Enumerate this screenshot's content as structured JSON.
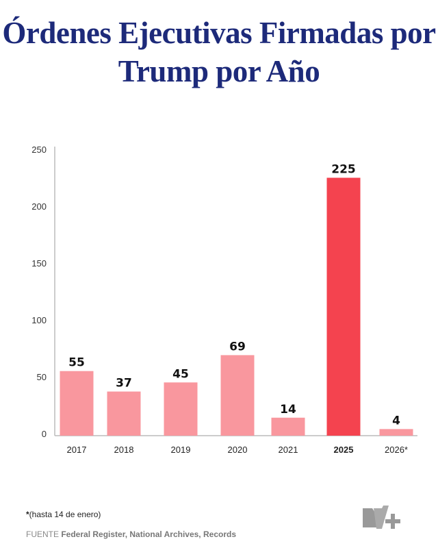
{
  "chart_data": {
    "type": "bar",
    "title": "Órdenes Ejecutivas Firmadas por Trump por Año",
    "categories": [
      "2017",
      "2018",
      "2019",
      "2020",
      "2021",
      "2025",
      "2026*"
    ],
    "values": [
      55,
      37,
      45,
      69,
      14,
      225,
      4
    ],
    "highlight": "2025",
    "ylim": [
      0,
      250
    ],
    "yticks": [
      0,
      50,
      100,
      150,
      200,
      250
    ],
    "xlabel": "",
    "ylabel": "",
    "grid": false,
    "colors": {
      "default": "#f9979e",
      "highlight": "#f4434f",
      "title": "#1d2a7a"
    }
  },
  "footnote": {
    "mark": "*",
    "text": "(hasta 14 de enero)"
  },
  "source": {
    "label": "FUENTE",
    "text": "Federal Register, National Archives, Records"
  },
  "logo": "N+"
}
